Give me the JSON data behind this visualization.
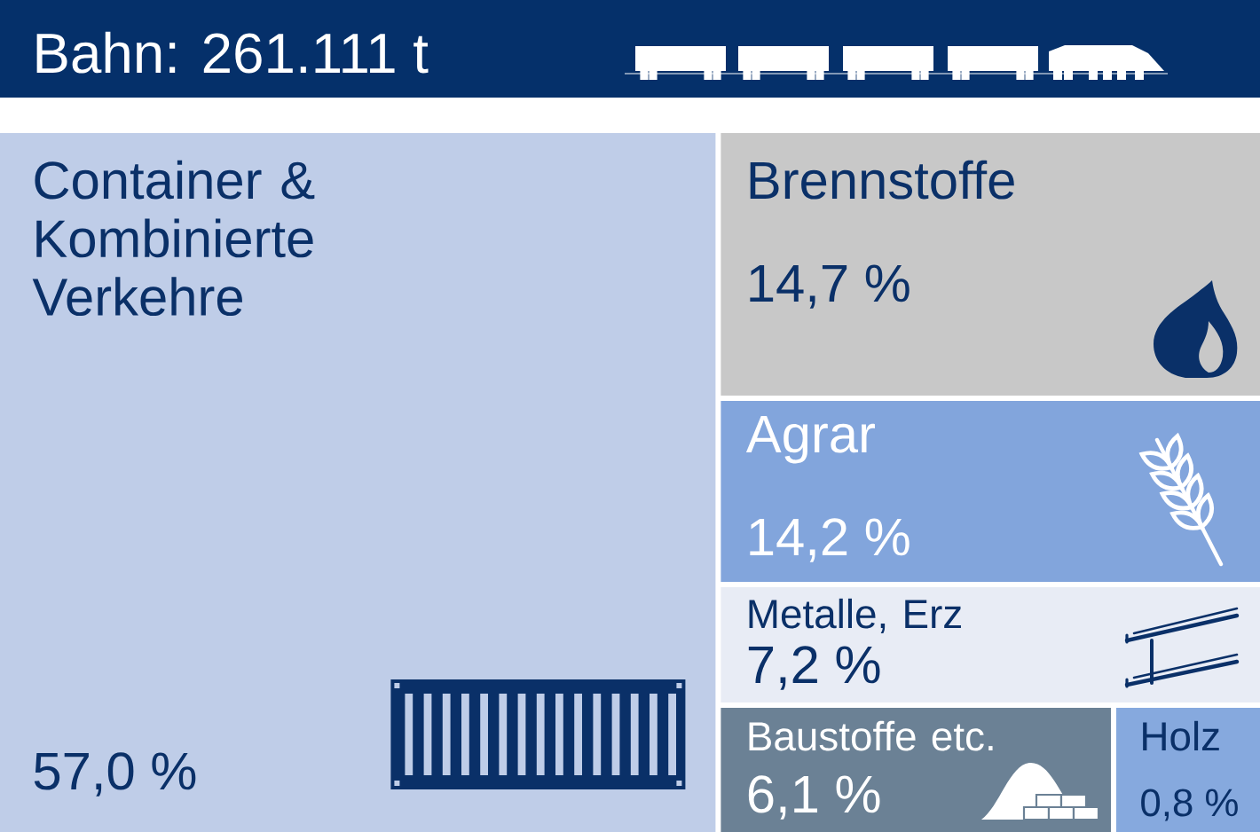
{
  "chart_data": {
    "type": "other",
    "title": "Bahn: 261.111 t",
    "categories": [
      "Container & Kombinierte Verkehre",
      "Brennstoffe",
      "Agrar",
      "Metalle, Erz",
      "Baustoffe etc.",
      "Holz"
    ],
    "values": [
      57.0,
      14.7,
      14.2,
      7.2,
      6.1,
      0.8
    ],
    "value_labels": [
      "57,0 %",
      "14,7 %",
      "14,2 %",
      "7,2 %",
      "6,1 %",
      "0,8 %"
    ],
    "colors": [
      "#bfcde8",
      "#c8c8c8",
      "#82a5dc",
      "#e8ecf5",
      "#6b8195",
      "#86a9de"
    ]
  }
}
